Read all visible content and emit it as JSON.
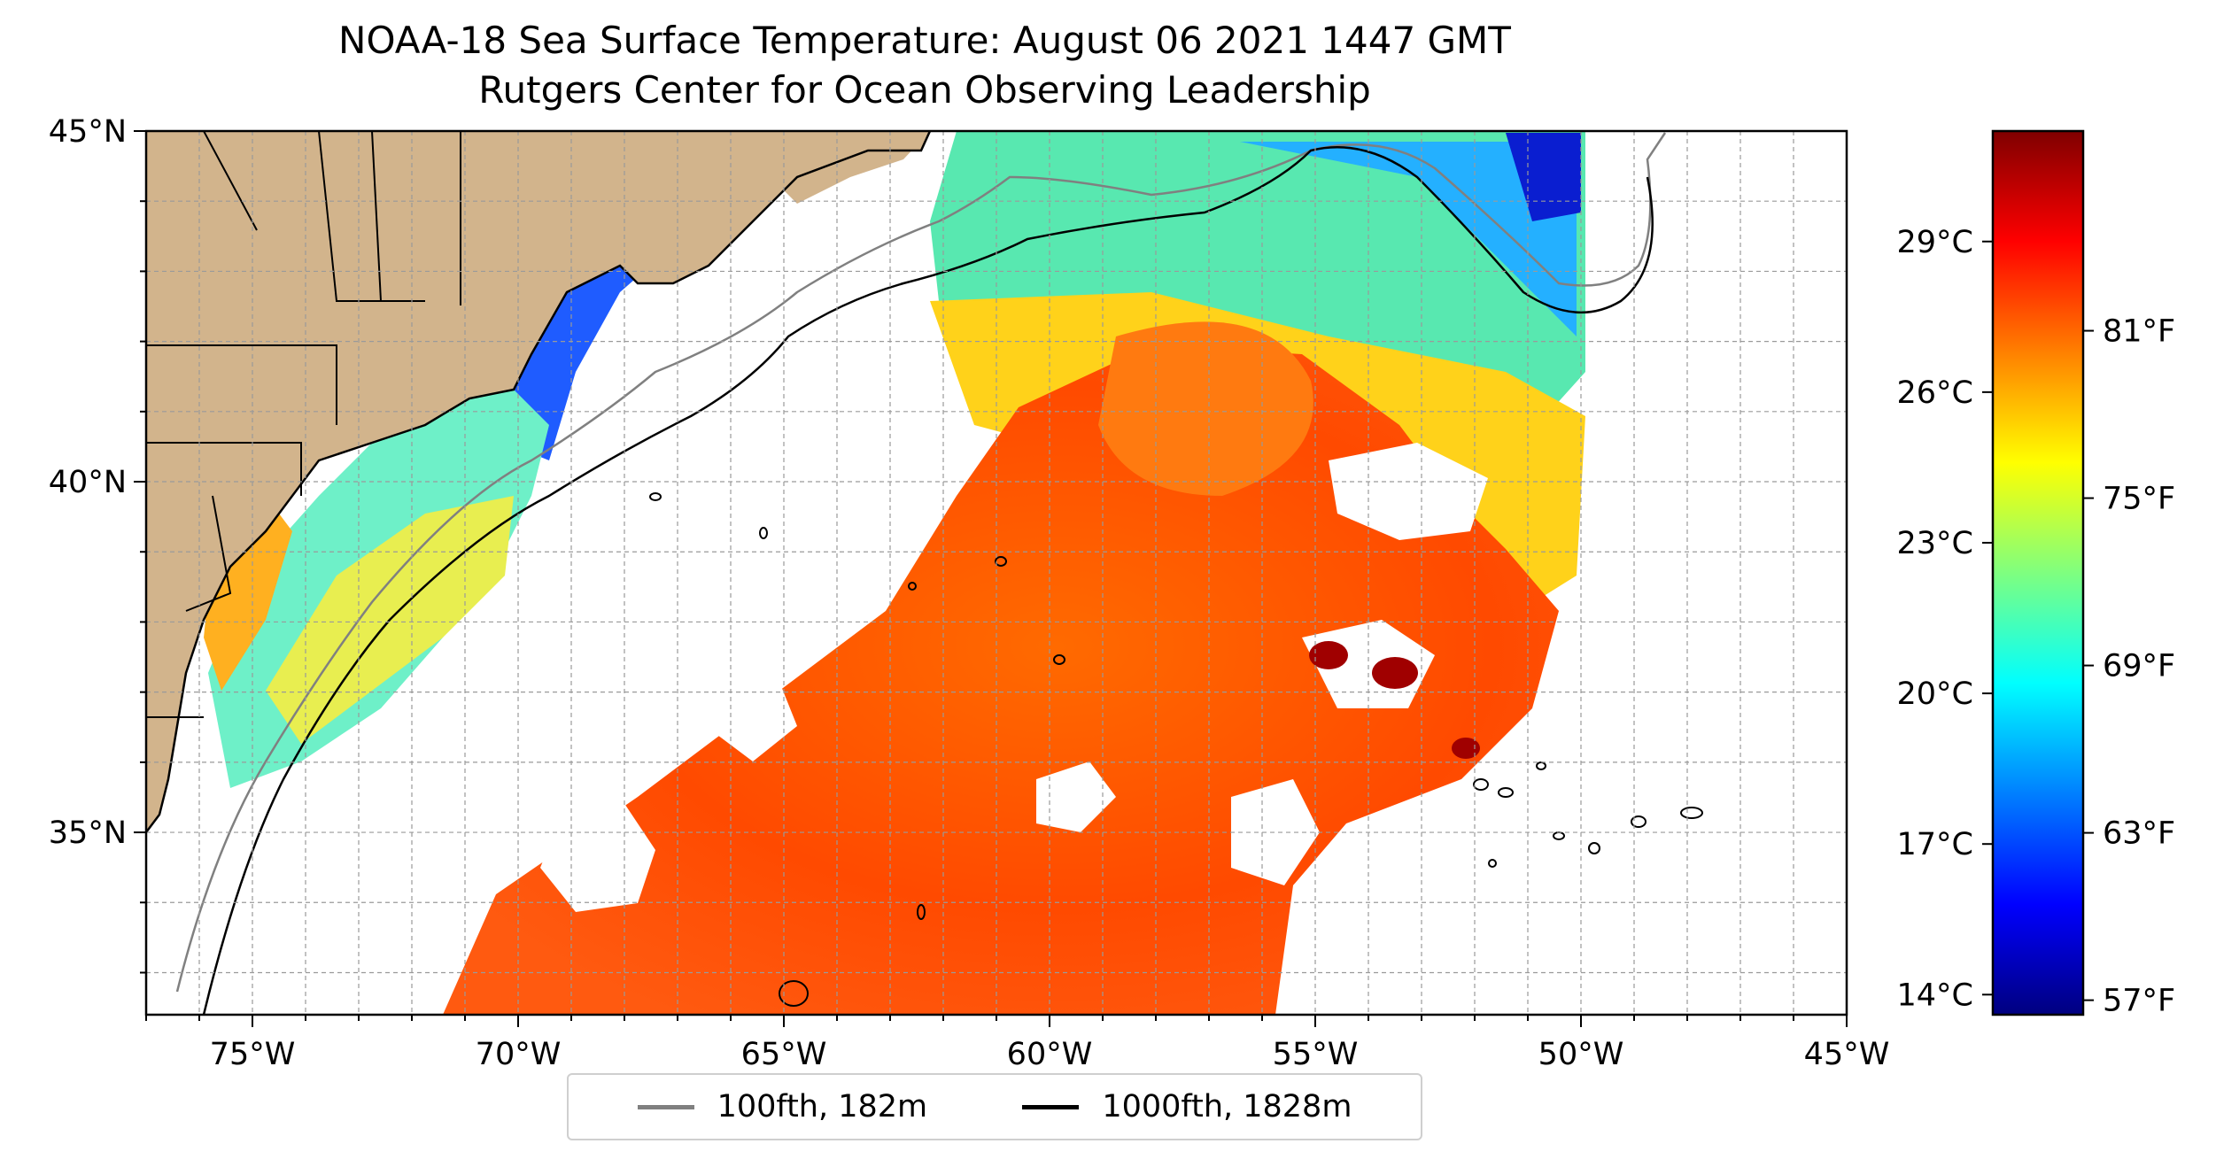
{
  "figure": {
    "title": "NOAA-18 Sea Surface Temperature: August 06 2021 1447 GMT",
    "subtitle": "Rutgers Center for Ocean Observing Leadership"
  },
  "map": {
    "extent": {
      "lon": [
        -77,
        -45
      ],
      "lat": [
        32.4,
        45
      ]
    },
    "lon_ticks": [
      {
        "value": -75,
        "label": "75°W"
      },
      {
        "value": -70,
        "label": "70°W"
      },
      {
        "value": -65,
        "label": "65°W"
      },
      {
        "value": -60,
        "label": "60°W"
      },
      {
        "value": -55,
        "label": "55°W"
      },
      {
        "value": -50,
        "label": "50°W"
      },
      {
        "value": -45,
        "label": "45°W"
      }
    ],
    "lat_ticks": [
      {
        "value": 45,
        "label": "45°N"
      },
      {
        "value": 40,
        "label": "40°N"
      },
      {
        "value": 35,
        "label": "35°N"
      }
    ],
    "grid": true,
    "colors": {
      "land": "#d2b48c",
      "no_data": "#ffffff",
      "coastline": "#000000"
    }
  },
  "colorbar": {
    "colormap": "jet",
    "range_c": [
      13.6,
      31.2
    ],
    "celsius_ticks": [
      {
        "value": 29,
        "label": "29°C"
      },
      {
        "value": 26,
        "label": "26°C"
      },
      {
        "value": 23,
        "label": "23°C"
      },
      {
        "value": 20,
        "label": "20°C"
      },
      {
        "value": 17,
        "label": "17°C"
      },
      {
        "value": 14,
        "label": "14°C"
      }
    ],
    "fahrenheit_ticks": [
      {
        "value": 81,
        "label": "81°F"
      },
      {
        "value": 75,
        "label": "75°F"
      },
      {
        "value": 69,
        "label": "69°F"
      },
      {
        "value": 63,
        "label": "63°F"
      },
      {
        "value": 57,
        "label": "57°F"
      }
    ]
  },
  "legend": {
    "placement": "bottom-center",
    "entries": [
      {
        "label": "100fth, 182m",
        "color": "#808080"
      },
      {
        "label": "1000fth, 1828m",
        "color": "#000000"
      }
    ]
  }
}
